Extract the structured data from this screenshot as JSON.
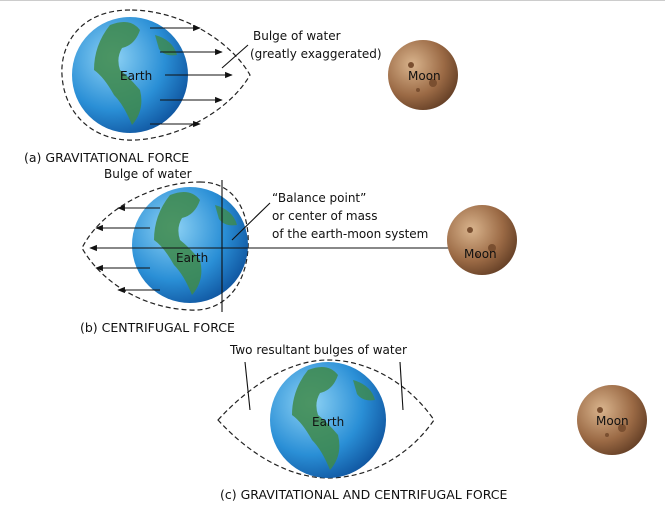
{
  "panels": [
    {
      "caption": "(a) GRAVITATIONAL FORCE",
      "earth": "Earth",
      "moon": "Moon",
      "bulge": "Bulge of water",
      "note": "(greatly exaggerated)"
    },
    {
      "caption": "(b) CENTRIFUGAL FORCE",
      "earth": "Earth",
      "moon": "Moon",
      "bulge": "Bulge of water",
      "balance": [
        "“Balance point”",
        "or center of mass",
        "of the earth-moon system"
      ]
    },
    {
      "caption": "(c) GRAVITATIONAL AND CENTRIFUGAL FORCE",
      "earth": "Earth",
      "moon": "Moon",
      "bulge": "Two resultant bulges of water"
    }
  ]
}
